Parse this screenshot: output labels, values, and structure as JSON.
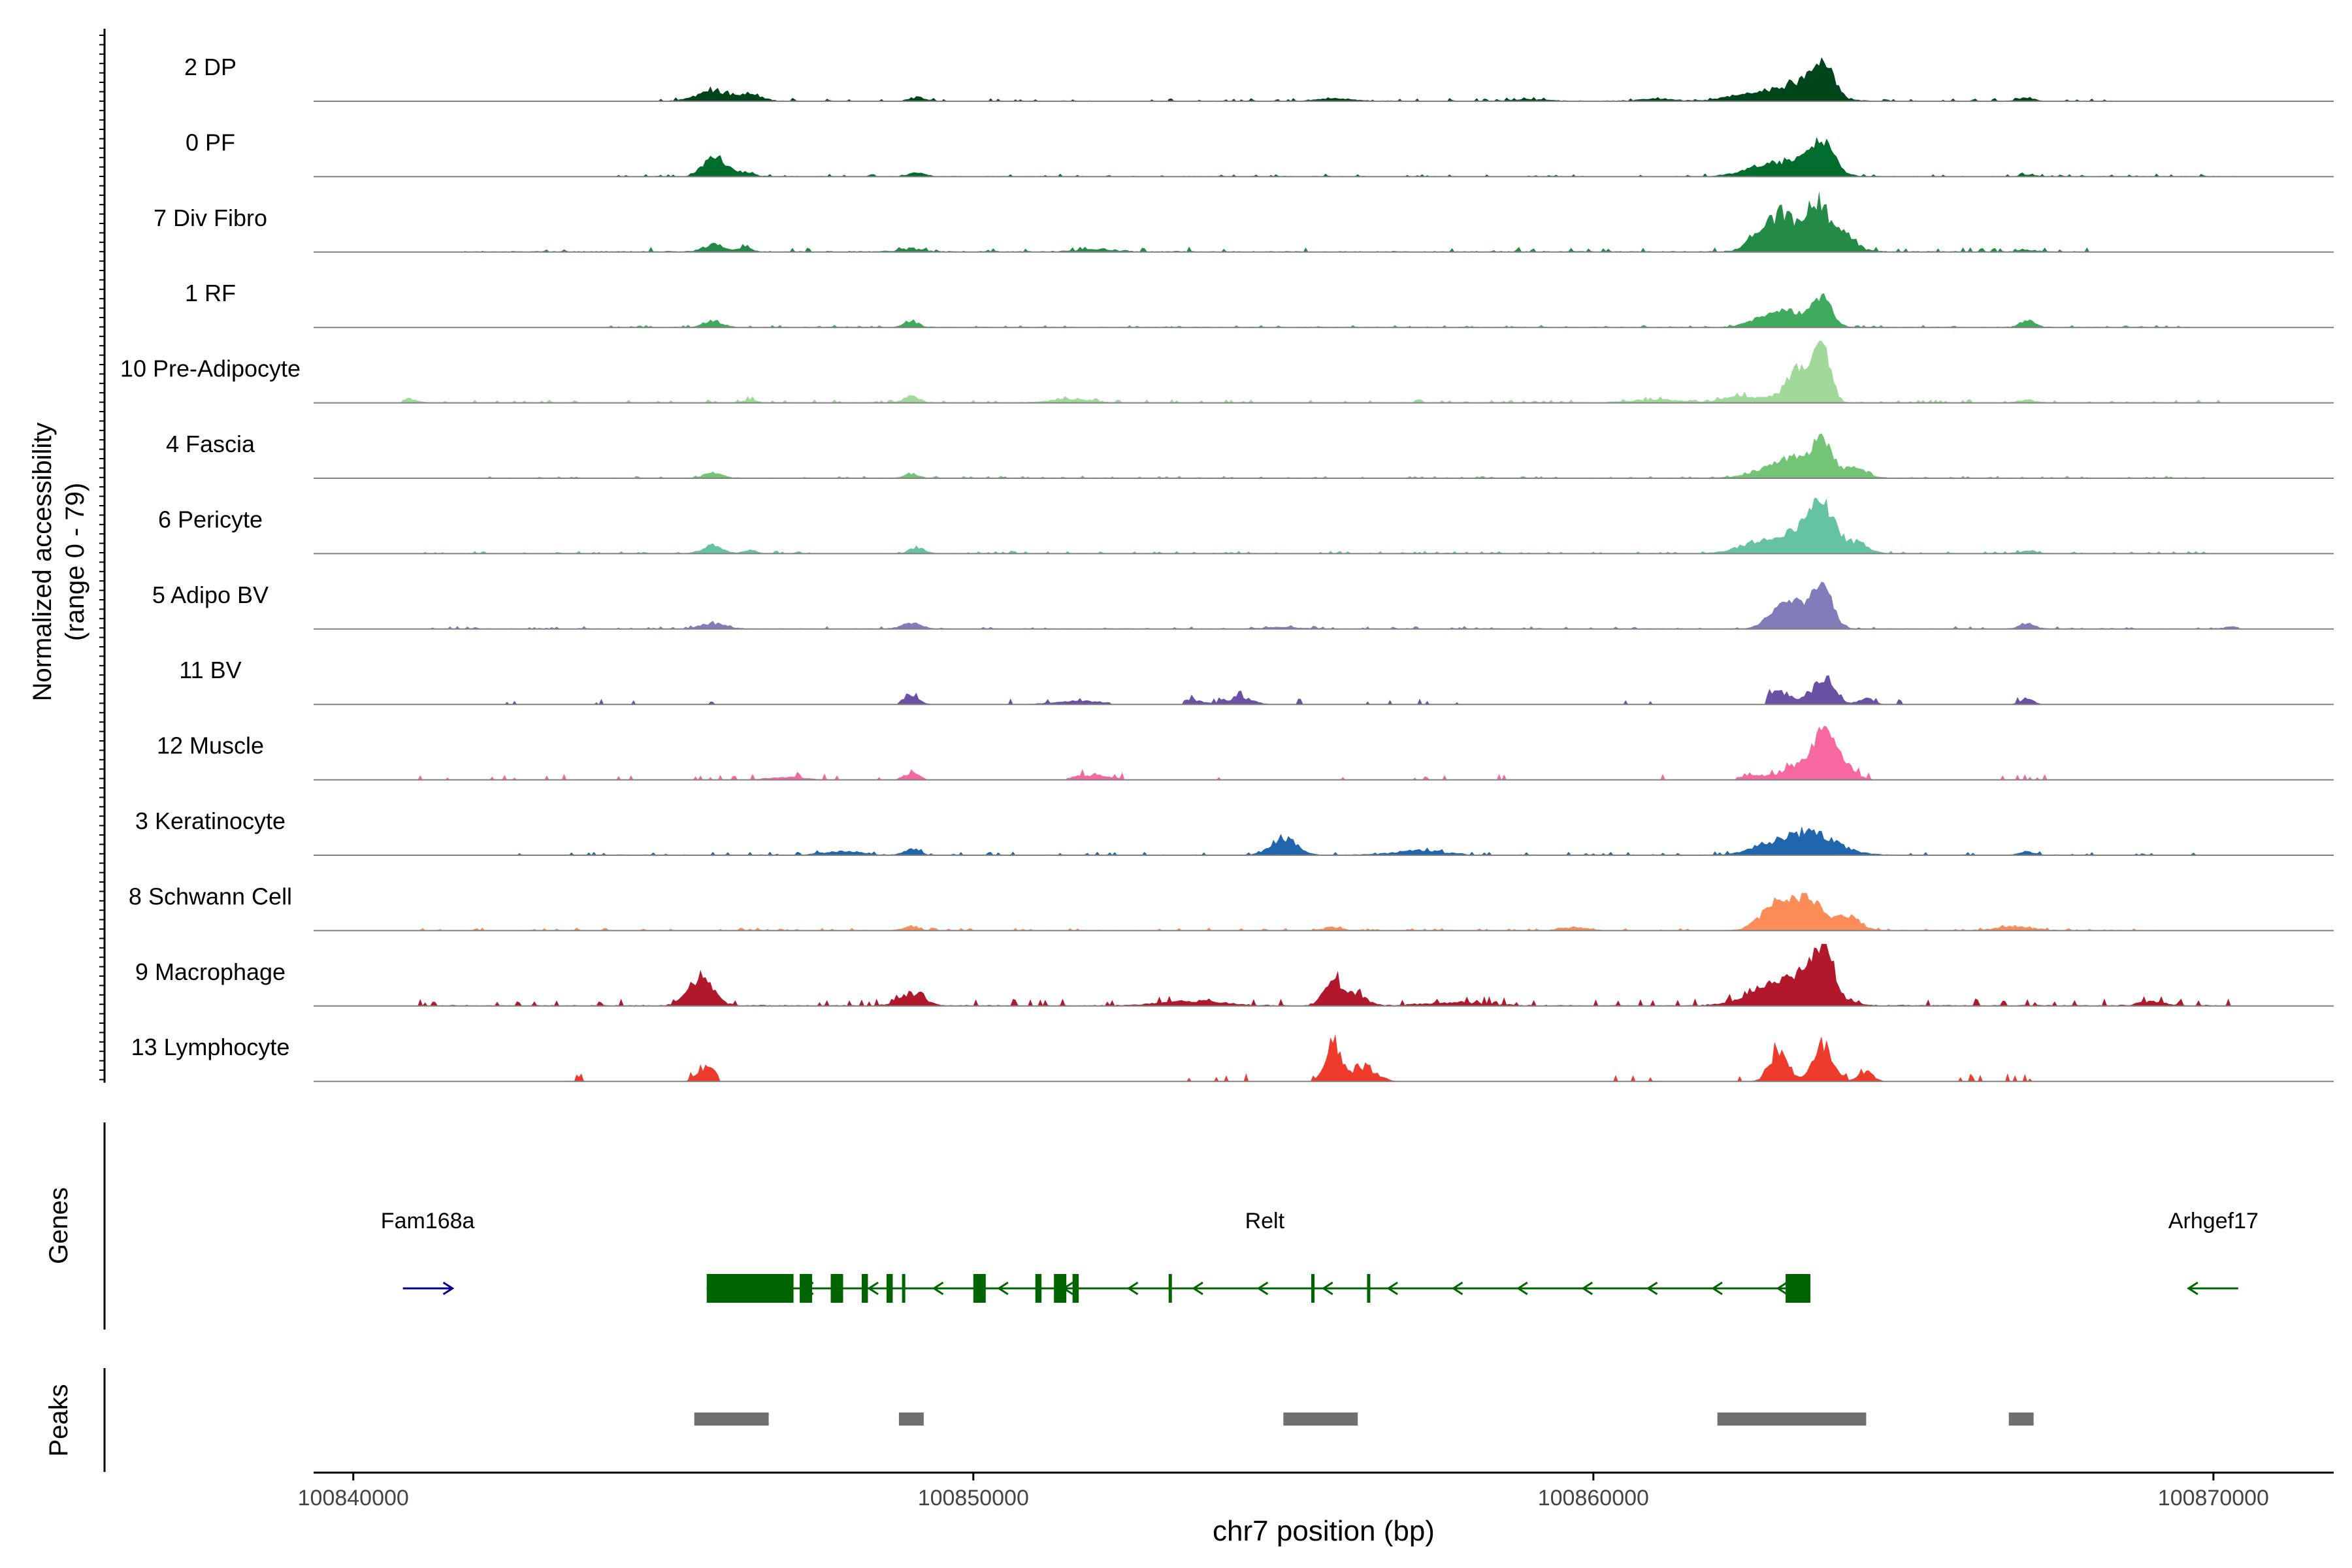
{
  "chart_data": {
    "type": "area",
    "ylabel_line1": "Normalized accessibility",
    "ylabel_line2": "(range 0 - 79)",
    "ylim": [
      0,
      79
    ],
    "xlabel": "chr7 position (bp)",
    "xlim": [
      100839360,
      100871940
    ],
    "x_ticks": [
      {
        "value": 100840000,
        "label": "100840000"
      },
      {
        "value": 100850000,
        "label": "100850000"
      },
      {
        "value": 100860000,
        "label": "100860000"
      },
      {
        "value": 100870000,
        "label": "100870000"
      }
    ],
    "tracks": [
      {
        "name": "2 DP",
        "color": "#00441b",
        "baseline": 1.0,
        "noise": 1.2,
        "peaks": [
          [
            100845800,
            250,
            13
          ],
          [
            100846400,
            200,
            8
          ],
          [
            100849100,
            120,
            5
          ],
          [
            100855800,
            300,
            3
          ],
          [
            100859000,
            300,
            2
          ],
          [
            100861000,
            300,
            3
          ],
          [
            100862400,
            300,
            7
          ],
          [
            100863300,
            400,
            22
          ],
          [
            100863700,
            160,
            42
          ],
          [
            100867000,
            120,
            4
          ]
        ],
        "windows": [
          [
            100844800,
            100868400
          ]
        ]
      },
      {
        "name": "0 PF",
        "color": "#006d2c",
        "baseline": 1.0,
        "noise": 1.0,
        "peaks": [
          [
            100845800,
            160,
            26
          ],
          [
            100846200,
            200,
            6
          ],
          [
            100849100,
            120,
            5
          ],
          [
            100862600,
            300,
            6
          ],
          [
            100863200,
            400,
            18
          ],
          [
            100863700,
            180,
            38
          ],
          [
            100867000,
            120,
            2
          ]
        ],
        "windows": [
          [
            100844200,
            100870500
          ]
        ]
      },
      {
        "name": "7 Div Fibro",
        "color": "#238b45",
        "baseline": 1.5,
        "noise": 2.0,
        "peaks": [
          [
            100845800,
            150,
            9
          ],
          [
            100846300,
            120,
            5
          ],
          [
            100849000,
            200,
            4
          ],
          [
            100852000,
            300,
            3
          ],
          [
            100862700,
            200,
            24
          ],
          [
            100863100,
            200,
            45
          ],
          [
            100863600,
            150,
            64
          ],
          [
            100864000,
            200,
            26
          ],
          [
            100867000,
            120,
            2
          ]
        ],
        "windows": [
          [
            100841800,
            100868000
          ]
        ]
      },
      {
        "name": "1 RF",
        "color": "#41ab5d",
        "baseline": 1.0,
        "noise": 0.9,
        "peaks": [
          [
            100845800,
            150,
            8
          ],
          [
            100849000,
            120,
            7
          ],
          [
            100862800,
            300,
            10
          ],
          [
            100863200,
            300,
            16
          ],
          [
            100863700,
            150,
            34
          ],
          [
            100867000,
            120,
            9
          ]
        ],
        "windows": [
          [
            100844000,
            100869600
          ]
        ]
      },
      {
        "name": "10 Pre-Adipocyte",
        "color": "#a1d99b",
        "baseline": 1.0,
        "noise": 1.4,
        "peaks": [
          [
            100840900,
            120,
            5
          ],
          [
            100846400,
            100,
            4
          ],
          [
            100849000,
            120,
            9
          ],
          [
            100851600,
            300,
            5
          ],
          [
            100861000,
            400,
            4
          ],
          [
            100862400,
            300,
            8
          ],
          [
            100863200,
            200,
            22
          ],
          [
            100863400,
            150,
            34
          ],
          [
            100863700,
            120,
            72
          ],
          [
            100867000,
            120,
            4
          ]
        ],
        "windows": [
          [
            100840800,
            100870200
          ]
        ]
      },
      {
        "name": "4 Fascia",
        "color": "#74c476",
        "baseline": 1.0,
        "noise": 0.9,
        "peaks": [
          [
            100845800,
            150,
            7
          ],
          [
            100849000,
            120,
            5
          ],
          [
            100862800,
            300,
            9
          ],
          [
            100863300,
            300,
            22
          ],
          [
            100863700,
            150,
            44
          ],
          [
            100864200,
            200,
            12
          ]
        ],
        "windows": [
          [
            100841000,
            100870200
          ]
        ]
      },
      {
        "name": "6 Pericyte",
        "color": "#66c2a4",
        "baseline": 1.0,
        "noise": 1.0,
        "peaks": [
          [
            100845800,
            150,
            10
          ],
          [
            100846400,
            100,
            4
          ],
          [
            100849100,
            120,
            8
          ],
          [
            100862600,
            300,
            12
          ],
          [
            100863300,
            300,
            30
          ],
          [
            100863700,
            180,
            54
          ],
          [
            100864200,
            200,
            14
          ],
          [
            100867000,
            120,
            4
          ]
        ],
        "windows": [
          [
            100841000,
            100870000
          ]
        ]
      },
      {
        "name": "5 Adipo BV",
        "color": "#807dba",
        "baseline": 1.0,
        "noise": 1.0,
        "peaks": [
          [
            100845800,
            200,
            7
          ],
          [
            100849000,
            150,
            8
          ],
          [
            100855000,
            300,
            2
          ],
          [
            100863000,
            200,
            14
          ],
          [
            100863300,
            300,
            26
          ],
          [
            100863700,
            150,
            48
          ],
          [
            100867000,
            120,
            7
          ],
          [
            100870300,
            120,
            3
          ]
        ],
        "windows": [
          [
            100841200,
            100870400
          ]
        ]
      },
      {
        "name": "11 BV",
        "color": "#6a51a3",
        "baseline": 0.0,
        "noise": 2.6,
        "peaks": [
          [
            100849000,
            120,
            14
          ],
          [
            100851700,
            400,
            5
          ],
          [
            100853500,
            200,
            6
          ],
          [
            100854300,
            200,
            9
          ],
          [
            100863000,
            200,
            16
          ],
          [
            100863700,
            180,
            30
          ],
          [
            100864400,
            120,
            8
          ],
          [
            100867000,
            120,
            6
          ]
        ],
        "windows": [
          [
            100842400,
            100845800
          ],
          [
            100848800,
            100852200
          ],
          [
            100853400,
            100858600
          ],
          [
            100860500,
            100861200
          ],
          [
            100862800,
            100865100
          ],
          [
            100866200,
            100867200
          ]
        ]
      },
      {
        "name": "12 Muscle",
        "color": "#f768a1",
        "baseline": 0.0,
        "noise": 2.6,
        "peaks": [
          [
            100847000,
            300,
            4
          ],
          [
            100849000,
            120,
            9
          ],
          [
            100851900,
            300,
            6
          ],
          [
            100862600,
            300,
            6
          ],
          [
            100863300,
            200,
            18
          ],
          [
            100863700,
            150,
            64
          ],
          [
            100864000,
            200,
            20
          ]
        ],
        "windows": [
          [
            100840900,
            100849400
          ],
          [
            100851500,
            100852400
          ],
          [
            100853600,
            100854200
          ],
          [
            100855200,
            100856200
          ],
          [
            100857000,
            100857700
          ],
          [
            100858300,
            100858800
          ],
          [
            100861000,
            100861200
          ],
          [
            100862300,
            100864500
          ],
          [
            100866500,
            100867400
          ]
        ]
      },
      {
        "name": "3 Keratinocyte",
        "color": "#2166ac",
        "baseline": 1.0,
        "noise": 1.3,
        "peaks": [
          [
            100847900,
            300,
            5
          ],
          [
            100849000,
            120,
            8
          ],
          [
            100855000,
            200,
            22
          ],
          [
            100857200,
            400,
            6
          ],
          [
            100862800,
            300,
            10
          ],
          [
            100863500,
            400,
            28
          ],
          [
            100867000,
            120,
            4
          ]
        ],
        "windows": [
          [
            100841000,
            100869800
          ]
        ]
      },
      {
        "name": "8 Schwann Cell",
        "color": "#fc8d59",
        "baseline": 1.0,
        "noise": 1.0,
        "peaks": [
          [
            100849000,
            120,
            5
          ],
          [
            100855800,
            150,
            4
          ],
          [
            100859700,
            200,
            4
          ],
          [
            100862800,
            200,
            18
          ],
          [
            100863100,
            200,
            30
          ],
          [
            100863500,
            200,
            36
          ],
          [
            100864100,
            200,
            18
          ],
          [
            100866800,
            300,
            5
          ]
        ],
        "windows": [
          [
            100841000,
            100869700
          ]
        ]
      },
      {
        "name": "9 Macrophage",
        "color": "#b2182b",
        "baseline": 1.5,
        "noise": 3.0,
        "peaks": [
          [
            100845600,
            200,
            36
          ],
          [
            100849000,
            200,
            16
          ],
          [
            100853500,
            500,
            6
          ],
          [
            100855800,
            150,
            34
          ],
          [
            100856200,
            150,
            14
          ],
          [
            100857800,
            500,
            4
          ],
          [
            100862800,
            400,
            16
          ],
          [
            100863400,
            400,
            30
          ],
          [
            100863700,
            150,
            56
          ],
          [
            100869000,
            200,
            6
          ]
        ],
        "windows": [
          [
            100841000,
            100870300
          ]
        ]
      },
      {
        "name": "13 Lymphocyte",
        "color": "#ef3b2c",
        "baseline": 0.0,
        "noise": 3.5,
        "peaks": [
          [
            100845700,
            150,
            18
          ],
          [
            100855800,
            120,
            50
          ],
          [
            100856300,
            200,
            18
          ],
          [
            100863000,
            150,
            38
          ],
          [
            100863700,
            150,
            50
          ],
          [
            100864400,
            120,
            12
          ]
        ],
        "windows": [
          [
            100842900,
            100844200
          ],
          [
            100845400,
            100845900
          ],
          [
            100853200,
            100854500
          ],
          [
            100855100,
            100856800
          ],
          [
            100860300,
            100861200
          ],
          [
            100862200,
            100865200
          ],
          [
            100865800,
            100867400
          ],
          [
            100868300,
            100868500
          ]
        ]
      }
    ],
    "genes": {
      "track_label": "Genes",
      "items": [
        {
          "name": "Fam168a",
          "strand": "+",
          "color": "#00008b",
          "start": 100840800,
          "end": 100841600,
          "label_x": 100841200,
          "exons": [],
          "utrs": []
        },
        {
          "name": "Relt",
          "strand": "-",
          "color": "#006400",
          "start": 100845700,
          "end": 100863500,
          "label_x": 100854700,
          "exons": [
            [
              100845700,
              100847100
            ],
            [
              100847200,
              100847400
            ],
            [
              100847700,
              100847900
            ],
            [
              100848200,
              100848300
            ],
            [
              100848600,
              100848700
            ],
            [
              100850000,
              100850200
            ],
            [
              100851000,
              100851100
            ],
            [
              100851300,
              100851500
            ],
            [
              100851600,
              100851700
            ],
            [
              100863100,
              100863500
            ]
          ],
          "utrs": [
            [
              100848850,
              100848900
            ],
            [
              100853150,
              100853200
            ],
            [
              100855450,
              100855500
            ],
            [
              100856350,
              100856400
            ]
          ]
        },
        {
          "name": "Arhgef17",
          "strand": "-",
          "color": "#006400",
          "start": 100869600,
          "end": 100870400,
          "label_x": 100870000,
          "exons": [],
          "utrs": []
        }
      ]
    },
    "peaks": {
      "track_label": "Peaks",
      "color": "#707070",
      "regions": [
        [
          100845500,
          100846700
        ],
        [
          100848800,
          100849200
        ],
        [
          100855000,
          100856200
        ],
        [
          100862000,
          100864400
        ],
        [
          100866700,
          100867100
        ]
      ]
    }
  }
}
